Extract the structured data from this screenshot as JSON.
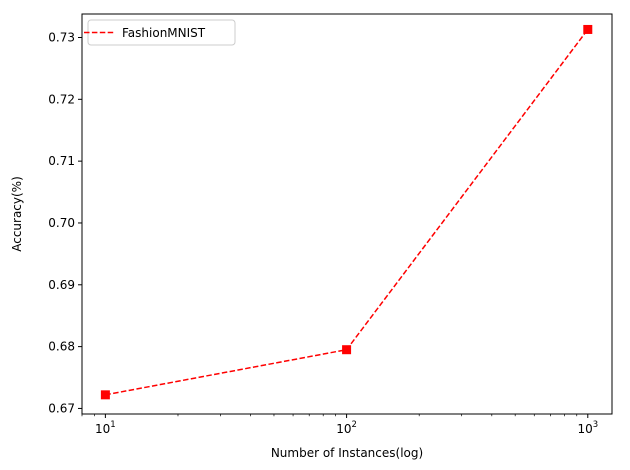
{
  "chart_data": {
    "type": "line",
    "xlabel": "Number of Instances(log)",
    "ylabel": "Accuracy(%)",
    "xscale": "log",
    "xlim": [
      8,
      1260
    ],
    "ylim": [
      0.6691,
      0.7338
    ],
    "grid": false,
    "legend_position": "top-left",
    "x_ticks": [
      {
        "base": "10",
        "exp": "1",
        "value": 10
      },
      {
        "base": "10",
        "exp": "2",
        "value": 100
      },
      {
        "base": "10",
        "exp": "3",
        "value": 1000
      }
    ],
    "y_ticks": [
      {
        "label": "0.67",
        "value": 0.67
      },
      {
        "label": "0.68",
        "value": 0.68
      },
      {
        "label": "0.69",
        "value": 0.69
      },
      {
        "label": "0.70",
        "value": 0.7
      },
      {
        "label": "0.71",
        "value": 0.71
      },
      {
        "label": "0.72",
        "value": 0.72
      },
      {
        "label": "0.73",
        "value": 0.73
      }
    ],
    "series": [
      {
        "name": "FashionMNIST",
        "color": "#ff0000",
        "line_style": "dashed",
        "marker": "square",
        "x": [
          10,
          100,
          1000
        ],
        "y": [
          0.6722,
          0.6795,
          0.7313
        ]
      }
    ]
  }
}
